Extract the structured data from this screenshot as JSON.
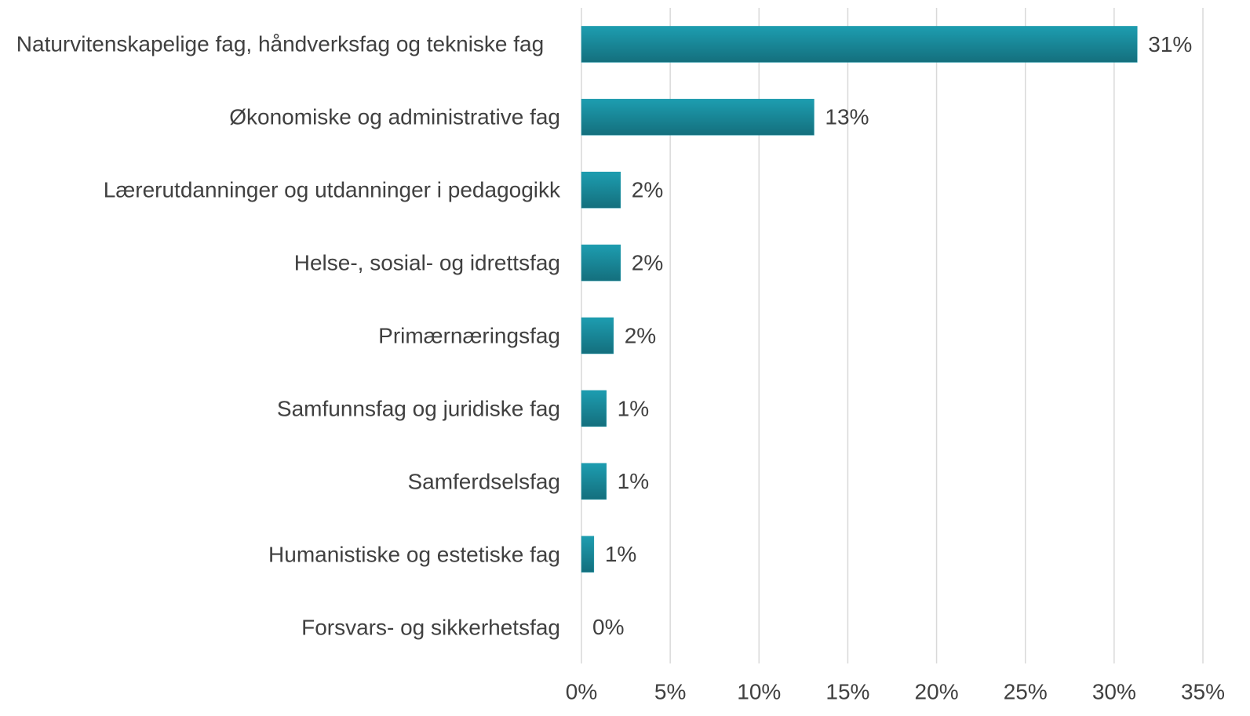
{
  "chart_data": {
    "type": "bar",
    "orientation": "horizontal",
    "categories": [
      "Naturvitenskapelige fag, håndverksfag og tekniske fag",
      "Økonomiske og administrative fag",
      "Lærerutdanninger og utdanninger i pedagogikk",
      "Helse-, sosial- og idrettsfag",
      "Primærnæringsfag",
      "Samfunnsfag og juridiske fag",
      "Samferdselsfag",
      "Humanistiske og estetiske fag",
      "Forsvars- og sikkerhetsfag"
    ],
    "values": [
      31.3,
      13.1,
      2.2,
      2.2,
      1.8,
      1.4,
      1.4,
      0.7,
      0
    ],
    "value_labels": [
      "31%",
      "13%",
      "2%",
      "2%",
      "2%",
      "1%",
      "1%",
      "1%",
      "0%"
    ],
    "color": "#1a94a6",
    "xlim": [
      0,
      35
    ],
    "xticks": [
      {
        "value": 0,
        "label": "0%"
      },
      {
        "value": 5,
        "label": "5%"
      },
      {
        "value": 10,
        "label": "10%"
      },
      {
        "value": 15,
        "label": "15%"
      },
      {
        "value": 20,
        "label": "20%"
      },
      {
        "value": 25,
        "label": "25%"
      },
      {
        "value": 30,
        "label": "30%"
      },
      {
        "value": 35,
        "label": "35%"
      }
    ],
    "grid": true
  }
}
